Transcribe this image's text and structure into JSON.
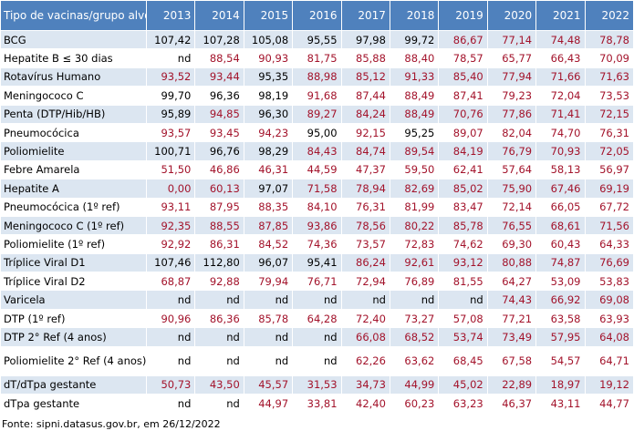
{
  "table": {
    "header": [
      "Tipo de vacinas/grupo alvo",
      "2013",
      "2014",
      "2015",
      "2016",
      "2017",
      "2018",
      "2019",
      "2020",
      "2021",
      "2022"
    ],
    "colors": {
      "header": "#4f81bd",
      "highlight": "#a3132b",
      "normal": "#000000",
      "stripe": "#dce6f1"
    },
    "rows": [
      {
        "cells": [
          "BCG",
          "107,42",
          "107,28",
          "105,08",
          "95,55",
          "97,98",
          "99,72",
          "86,67",
          "77,14",
          "74,48",
          "78,78"
        ],
        "highlight": [
          6,
          7,
          8,
          9
        ]
      },
      {
        "cells": [
          "Hepatite B ≤ 30 dias",
          "nd",
          "88,54",
          "90,93",
          "81,75",
          "85,88",
          "88,40",
          "78,57",
          "65,77",
          "66,43",
          "70,09"
        ],
        "highlight": [
          1,
          2,
          3,
          4,
          5,
          6,
          7,
          8,
          9
        ]
      },
      {
        "cells": [
          "Rotavírus Humano",
          "93,52",
          "93,44",
          "95,35",
          "88,98",
          "85,12",
          "91,33",
          "85,40",
          "77,94",
          "71,66",
          "71,63"
        ],
        "highlight": [
          0,
          1,
          3,
          4,
          5,
          6,
          7,
          8,
          9
        ]
      },
      {
        "cells": [
          "Meningococo C",
          "99,70",
          "96,36",
          "98,19",
          "91,68",
          "87,44",
          "88,49",
          "87,41",
          "79,23",
          "72,04",
          "73,53"
        ],
        "highlight": [
          3,
          4,
          5,
          6,
          7,
          8,
          9
        ]
      },
      {
        "cells": [
          "Penta (DTP/Hib/HB)",
          "95,89",
          "94,85",
          "96,30",
          "89,27",
          "84,24",
          "88,49",
          "70,76",
          "77,86",
          "71,41",
          "72,15"
        ],
        "highlight": [
          1,
          3,
          4,
          5,
          6,
          7,
          8,
          9
        ]
      },
      {
        "cells": [
          "Pneumocócica",
          "93,57",
          "93,45",
          "94,23",
          "95,00",
          "92,15",
          "95,25",
          "89,07",
          "82,04",
          "74,70",
          "76,31"
        ],
        "highlight": [
          0,
          1,
          2,
          4,
          6,
          7,
          8,
          9
        ]
      },
      {
        "cells": [
          "Poliomielite",
          "100,71",
          "96,76",
          "98,29",
          "84,43",
          "84,74",
          "89,54",
          "84,19",
          "76,79",
          "70,93",
          "72,05"
        ],
        "highlight": [
          3,
          4,
          5,
          6,
          7,
          8,
          9
        ]
      },
      {
        "cells": [
          "Febre Amarela",
          "51,50",
          "46,86",
          "46,31",
          "44,59",
          "47,37",
          "59,50",
          "62,41",
          "57,64",
          "58,13",
          "56,97"
        ],
        "highlight": [
          0,
          1,
          2,
          3,
          4,
          5,
          6,
          7,
          8,
          9
        ]
      },
      {
        "cells": [
          "Hepatite A",
          "0,00",
          "60,13",
          "97,07",
          "71,58",
          "78,94",
          "82,69",
          "85,02",
          "75,90",
          "67,46",
          "69,19"
        ],
        "highlight": [
          0,
          1,
          3,
          4,
          5,
          6,
          7,
          8,
          9
        ]
      },
      {
        "cells": [
          "Pneumocócica (1º ref)",
          "93,11",
          "87,95",
          "88,35",
          "84,10",
          "76,31",
          "81,99",
          "83,47",
          "72,14",
          "66,05",
          "67,72"
        ],
        "highlight": [
          0,
          1,
          2,
          3,
          4,
          5,
          6,
          7,
          8,
          9
        ]
      },
      {
        "cells": [
          "Meningococo C (1º ref)",
          "92,35",
          "88,55",
          "87,85",
          "93,86",
          "78,56",
          "80,22",
          "85,78",
          "76,55",
          "68,61",
          "71,56"
        ],
        "highlight": [
          0,
          1,
          2,
          3,
          4,
          5,
          6,
          7,
          8,
          9
        ]
      },
      {
        "cells": [
          "Poliomielite  (1º ref)",
          "92,92",
          "86,31",
          "84,52",
          "74,36",
          "73,57",
          "72,83",
          "74,62",
          "69,30",
          "60,43",
          "64,33"
        ],
        "highlight": [
          0,
          1,
          2,
          3,
          4,
          5,
          6,
          7,
          8,
          9
        ]
      },
      {
        "cells": [
          "Tríplice Viral  D1",
          "107,46",
          "112,80",
          "96,07",
          "95,41",
          "86,24",
          "92,61",
          "93,12",
          "80,88",
          "74,87",
          "76,69"
        ],
        "highlight": [
          4,
          5,
          6,
          7,
          8,
          9
        ]
      },
      {
        "cells": [
          "Tríplice Viral  D2",
          "68,87",
          "92,88",
          "79,94",
          "76,71",
          "72,94",
          "76,89",
          "81,55",
          "64,27",
          "53,09",
          "53,83"
        ],
        "highlight": [
          0,
          1,
          2,
          3,
          4,
          5,
          6,
          7,
          8,
          9
        ]
      },
      {
        "cells": [
          "Varicela",
          "nd",
          "nd",
          "nd",
          "nd",
          "nd",
          "nd",
          "nd",
          "74,43",
          "66,92",
          "69,08"
        ],
        "highlight": [
          7,
          8,
          9
        ]
      },
      {
        "cells": [
          "DTP (1º ref)",
          "90,96",
          "86,36",
          "85,78",
          "64,28",
          "72,40",
          "73,27",
          "57,08",
          "77,21",
          "63,58",
          "63,93"
        ],
        "highlight": [
          0,
          1,
          2,
          3,
          4,
          5,
          6,
          7,
          8,
          9
        ]
      },
      {
        "cells": [
          "DTP 2° Ref (4 anos)",
          "nd",
          "nd",
          "nd",
          "nd",
          "66,08",
          "68,52",
          "53,74",
          "73,49",
          "57,95",
          "64,08"
        ],
        "highlight": [
          4,
          5,
          6,
          7,
          8,
          9
        ]
      },
      {
        "cells": [
          "Poliomielite 2° Ref (4 anos)",
          "nd",
          "nd",
          "nd",
          "nd",
          "62,26",
          "63,62",
          "68,45",
          "67,58",
          "54,57",
          "64,71"
        ],
        "highlight": [
          4,
          5,
          6,
          7,
          8,
          9
        ]
      },
      {
        "cells": [
          "dT/dTpa gestante",
          "50,73",
          "43,50",
          "45,57",
          "31,53",
          "34,73",
          "44,99",
          "45,02",
          "22,89",
          "18,97",
          "19,12"
        ],
        "highlight": [
          0,
          1,
          2,
          3,
          4,
          5,
          6,
          7,
          8,
          9
        ]
      },
      {
        "cells": [
          "dTpa gestante",
          "nd",
          "nd",
          "44,97",
          "33,81",
          "42,40",
          "60,23",
          "63,23",
          "46,37",
          "43,11",
          "44,77"
        ],
        "highlight": [
          2,
          3,
          4,
          5,
          6,
          7,
          8,
          9
        ]
      }
    ]
  },
  "footer": "Fonte: sipni.datasus.gov.br, em 26/12/2022"
}
